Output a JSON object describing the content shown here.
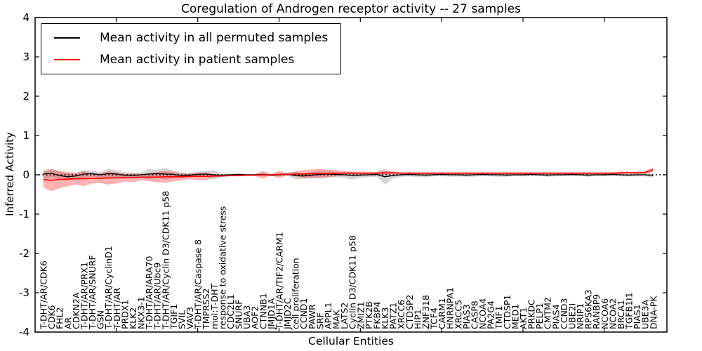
{
  "chart_data": {
    "type": "line",
    "title": "Coregulation of Androgen receptor activity -- 27 samples",
    "xlabel": "Cellular Entities",
    "ylabel": "Inferred Activity",
    "ylim": [
      -4,
      4
    ],
    "yticks": [
      -4,
      -3,
      -2,
      -1,
      0,
      1,
      2,
      3,
      4
    ],
    "ytick_labels": [
      "-4",
      "-3",
      "-2",
      "-1",
      "0",
      "1",
      "2",
      "3",
      "4"
    ],
    "xlim": [
      0,
      77.7
    ],
    "xtick_step": 10,
    "grid": false,
    "legend_position": "upper left",
    "zero_line": {
      "style": "dotted",
      "color": "#000000",
      "y": 0
    },
    "categories": [
      "T-DHT/AR/CDK6",
      "CDK6",
      "FHL2",
      "AR",
      "CDKN2A",
      "T-DHT/AR/PRX1",
      "T-DHT/AR/SNURF",
      "GSN",
      "T-DHT/AR/CyclinD1",
      "T-DHT/AR",
      "PRDX1",
      "KLK2",
      "NKX3-1",
      "T-DHT/AR/ARA70",
      "T-DHT/AR/Ubc9",
      "T-DHT/AR/Cyclin D3/CDK11 p58",
      "TGIF1",
      "SVIL",
      "VAV3",
      "T-DHT/AR/Caspase 8",
      "TMPRSS2",
      "mol:T-DHT",
      "response to oxidative stress",
      "CDC2L1",
      "SNURF",
      "UBA3",
      "AOF2",
      "CTNNB1",
      "JMJD1A",
      "T-DHT/AR/TIF2/CARM1",
      "JMJD2C",
      "cell proliferation",
      "CCND1",
      "PAWR",
      "SRF",
      "APPL1",
      "MAK",
      "LATS2",
      "Cyclin D3/CDK11 p58",
      "ZMIZ1",
      "PTK2B",
      "FKBP4",
      "KLK3",
      "PATZ1",
      "XRCC6",
      "CTDSP2",
      "HIP1",
      "ZNF318",
      "TCF4",
      "CARM1",
      "HNRNPA1",
      "XRCC5",
      "PIAS3",
      "CASP8",
      "NCOA4",
      "PA2G4",
      "TMF1",
      "CTDSP1",
      "MED1",
      "AKT1",
      "PRKDC",
      "PELP1",
      "CMTM2",
      "PIAS4",
      "CCND3",
      "UBE2I",
      "NRIP1",
      "RPS6KA3",
      "RANBP9",
      "NCOA6",
      "NCOA2",
      "BRCA1",
      "TGFB1I1",
      "PIAS1",
      "UBE3A",
      "DNA-PK"
    ],
    "series": [
      {
        "name": "Mean activity in all permuted samples",
        "color": "#000000",
        "band_color": "rgba(120,120,120,0.30)",
        "values": [
          0.02,
          0.04,
          -0.02,
          -0.05,
          -0.03,
          0.02,
          0.03,
          0.0,
          0.03,
          0.02,
          -0.01,
          -0.02,
          0.0,
          0.02,
          0.03,
          0.02,
          0.01,
          -0.02,
          -0.01,
          0.01,
          0.02,
          0.0,
          -0.01,
          0.0,
          0.01,
          0.0,
          0.0,
          0.01,
          -0.01,
          0.0,
          0.02,
          -0.02,
          -0.03,
          -0.01,
          0.01,
          0.02,
          0.01,
          0.0,
          -0.02,
          -0.01,
          0.0,
          0.01,
          -0.05,
          -0.02,
          0.0,
          0.01,
          0.0,
          -0.01,
          0.0,
          0.01,
          0.0,
          0.0,
          -0.01,
          0.0,
          0.01,
          0.0,
          0.0,
          -0.01,
          0.0,
          0.0,
          0.01,
          0.0,
          -0.01,
          0.0,
          0.0,
          0.01,
          0.0,
          -0.01,
          0.0,
          0.0,
          0.01,
          0.0,
          -0.01,
          0.0,
          0.0,
          -0.02
        ],
        "band_halfwidth": [
          0.1,
          0.12,
          0.1,
          0.09,
          0.08,
          0.1,
          0.08,
          0.07,
          0.12,
          0.1,
          0.07,
          0.06,
          0.06,
          0.13,
          0.1,
          0.15,
          0.1,
          0.07,
          0.06,
          0.07,
          0.08,
          0.12,
          0.04,
          0.03,
          0.02,
          0.02,
          0.02,
          0.03,
          0.03,
          0.03,
          0.04,
          0.1,
          0.07,
          0.08,
          0.09,
          0.08,
          0.07,
          0.08,
          0.1,
          0.07,
          0.06,
          0.06,
          0.2,
          0.08,
          0.05,
          0.05,
          0.06,
          0.05,
          0.04,
          0.04,
          0.05,
          0.04,
          0.04,
          0.05,
          0.04,
          0.04,
          0.05,
          0.04,
          0.03,
          0.04,
          0.04,
          0.03,
          0.04,
          0.04,
          0.03,
          0.04,
          0.03,
          0.04,
          0.03,
          0.04,
          0.03,
          0.04,
          0.03,
          0.04,
          0.04,
          0.05
        ]
      },
      {
        "name": "Mean activity in patient samples",
        "color": "#ff0000",
        "band_color": "rgba(255,0,0,0.30)",
        "values": [
          -0.12,
          -0.14,
          -0.12,
          -0.11,
          -0.1,
          -0.1,
          -0.09,
          -0.09,
          -0.08,
          -0.08,
          -0.07,
          -0.07,
          -0.06,
          -0.06,
          -0.06,
          -0.05,
          -0.05,
          -0.05,
          -0.04,
          -0.04,
          -0.04,
          -0.03,
          -0.03,
          -0.02,
          -0.02,
          -0.01,
          -0.01,
          0.0,
          0.0,
          0.01,
          0.01,
          0.02,
          0.02,
          0.03,
          0.03,
          0.03,
          0.04,
          0.04,
          0.04,
          0.04,
          0.04,
          0.04,
          0.05,
          0.05,
          0.04,
          0.04,
          0.04,
          0.04,
          0.04,
          0.04,
          0.04,
          0.04,
          0.04,
          0.04,
          0.04,
          0.04,
          0.04,
          0.04,
          0.04,
          0.04,
          0.04,
          0.04,
          0.04,
          0.04,
          0.04,
          0.04,
          0.04,
          0.04,
          0.04,
          0.04,
          0.04,
          0.05,
          0.05,
          0.05,
          0.06,
          0.13
        ],
        "band_halfwidth": [
          0.2,
          0.28,
          0.22,
          0.18,
          0.15,
          0.19,
          0.13,
          0.12,
          0.17,
          0.14,
          0.1,
          0.12,
          0.08,
          0.1,
          0.13,
          0.15,
          0.12,
          0.09,
          0.07,
          0.1,
          0.1,
          0.04,
          0.02,
          0.02,
          0.02,
          0.02,
          0.02,
          0.1,
          0.02,
          0.09,
          0.02,
          0.06,
          0.1,
          0.11,
          0.12,
          0.1,
          0.08,
          0.05,
          0.04,
          0.04,
          0.04,
          0.03,
          0.05,
          0.04,
          0.03,
          0.03,
          0.03,
          0.03,
          0.03,
          0.03,
          0.03,
          0.03,
          0.03,
          0.03,
          0.03,
          0.03,
          0.03,
          0.03,
          0.03,
          0.03,
          0.03,
          0.03,
          0.03,
          0.03,
          0.03,
          0.03,
          0.03,
          0.03,
          0.03,
          0.03,
          0.03,
          0.03,
          0.03,
          0.03,
          0.04,
          0.06
        ]
      }
    ]
  }
}
